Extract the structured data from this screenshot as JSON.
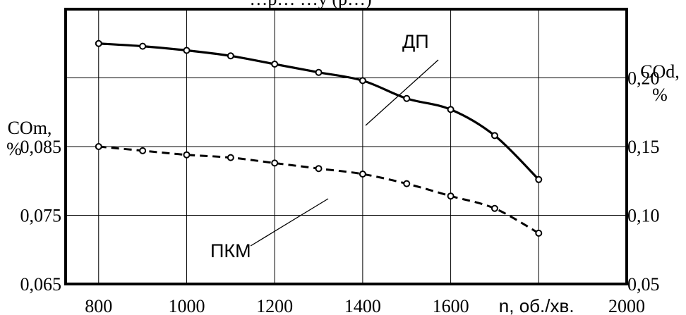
{
  "chart_data": {
    "type": "line",
    "title": "…р… …у (р…)",
    "x": [
      800,
      900,
      1000,
      1100,
      1200,
      1300,
      1400,
      1500,
      1600,
      1700,
      1800
    ],
    "xlim": [
      725,
      2000
    ],
    "xticks": [
      "800",
      "1000",
      "1200",
      "1400",
      "1600",
      "n, об./хв.",
      "2000"
    ],
    "left_axis": {
      "label_line1": "COm,",
      "label_line2": "%",
      "ylim": [
        0.065,
        0.085
      ],
      "ticks": [
        "0,085",
        "0,075",
        "0,065"
      ]
    },
    "right_axis": {
      "label_line1": "COd,",
      "label_line2": "%",
      "ylim": [
        0.05,
        0.25
      ],
      "ticks": [
        "0,20",
        "0,15",
        "0,10",
        "0,05"
      ]
    },
    "grid": true,
    "series": [
      {
        "name": "ДП",
        "axis": "right",
        "style": "solid",
        "values": [
          0.225,
          0.223,
          0.22,
          0.216,
          0.21,
          0.204,
          0.198,
          0.185,
          0.177,
          0.158,
          0.126
        ]
      },
      {
        "name": "ПКМ",
        "axis": "right",
        "style": "dashed",
        "values": [
          0.15,
          0.147,
          0.144,
          0.142,
          0.138,
          0.134,
          0.13,
          0.123,
          0.114,
          0.105,
          0.087
        ]
      }
    ]
  }
}
